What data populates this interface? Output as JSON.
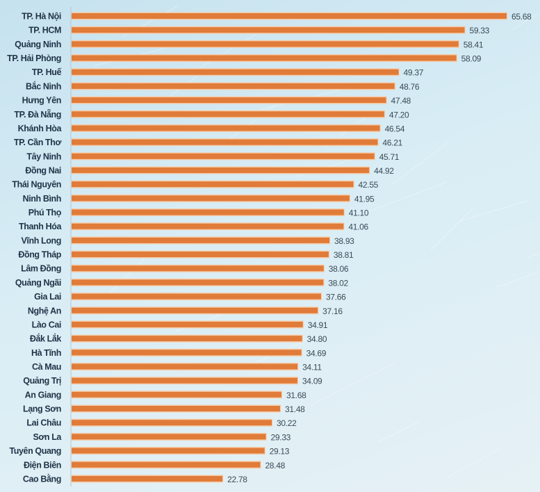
{
  "chart_data": {
    "type": "bar",
    "orientation": "horizontal",
    "categories": [
      "TP. Hà Nội",
      "TP. HCM",
      "Quảng Ninh",
      "TP. Hải Phòng",
      "TP. Huế",
      "Bắc Ninh",
      "Hưng Yên",
      "TP. Đà Nẵng",
      "Khánh Hòa",
      "TP. Cần Thơ",
      "Tây Ninh",
      "Đồng Nai",
      "Thái Nguyên",
      "Ninh Bình",
      "Phú Thọ",
      "Thanh Hóa",
      "Vĩnh Long",
      "Đồng Tháp",
      "Lâm Đồng",
      "Quảng Ngãi",
      "Gia Lai",
      "Nghệ An",
      "Lào Cai",
      "Đắk Lắk",
      "Hà Tĩnh",
      "Cà Mau",
      "Quảng Trị",
      "An Giang",
      "Lạng Sơn",
      "Lai Châu",
      "Sơn La",
      "Tuyên Quang",
      "Điện Biên",
      "Cao Bằng"
    ],
    "values": [
      65.68,
      59.33,
      58.41,
      58.09,
      49.37,
      48.76,
      47.48,
      47.2,
      46.54,
      46.21,
      45.71,
      44.92,
      42.55,
      41.95,
      41.1,
      41.06,
      38.93,
      38.81,
      38.06,
      38.02,
      37.66,
      37.16,
      34.91,
      34.8,
      34.69,
      34.11,
      34.09,
      31.68,
      31.48,
      30.22,
      29.33,
      29.13,
      28.48,
      22.78
    ],
    "value_labels": [
      "65.68",
      "59.33",
      "58.41",
      "58.09",
      "49.37",
      "48.76",
      "47.48",
      "47.20",
      "46.54",
      "46.21",
      "45.71",
      "44.92",
      "42.55",
      "41.95",
      "41.10",
      "41.06",
      "38.93",
      "38.81",
      "38.06",
      "38.02",
      "37.66",
      "37.16",
      "34.91",
      "34.80",
      "34.69",
      "34.11",
      "34.09",
      "31.68",
      "31.48",
      "30.22",
      "29.33",
      "29.13",
      "28.48",
      "22.78"
    ],
    "title": "",
    "xlabel": "",
    "ylabel": "",
    "xlim": [
      0,
      65.68
    ],
    "grid": false,
    "legend": "none",
    "colors": {
      "bar": "#e07b39",
      "bar_outline": "#f6c9a4",
      "axis": "#b8c6cc"
    }
  }
}
